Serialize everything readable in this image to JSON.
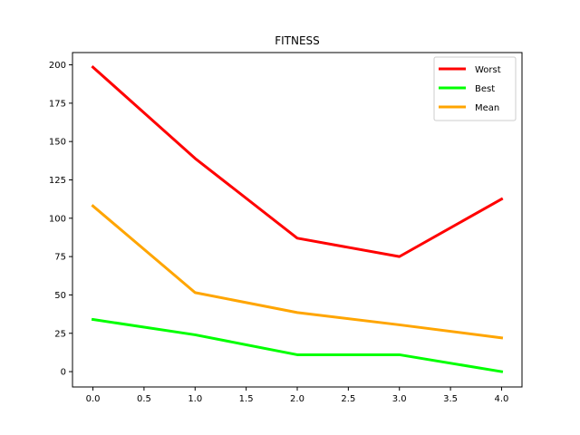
{
  "chart_data": {
    "type": "line",
    "title": "FITNESS",
    "xlabel": "",
    "ylabel": "",
    "x": [
      0,
      1,
      2,
      3,
      4
    ],
    "xlim": [
      -0.2,
      4.2
    ],
    "ylim": [
      -10,
      208
    ],
    "xticks": [
      "0.0",
      "0.5",
      "1.0",
      "1.5",
      "2.0",
      "2.5",
      "3.0",
      "3.5",
      "4.0"
    ],
    "yticks": [
      "0",
      "25",
      "50",
      "75",
      "100",
      "125",
      "150",
      "175",
      "200"
    ],
    "grid": false,
    "legend_position": "top-right",
    "series": [
      {
        "name": "Worst",
        "color": "#ff0000",
        "values": [
          198.5,
          139,
          87,
          75,
          112.5
        ]
      },
      {
        "name": "Best",
        "color": "#00ff00",
        "values": [
          34,
          24,
          11,
          11,
          0
        ]
      },
      {
        "name": "Mean",
        "color": "#ffa500",
        "values": [
          108,
          51.5,
          38.5,
          30.5,
          22
        ]
      }
    ]
  }
}
